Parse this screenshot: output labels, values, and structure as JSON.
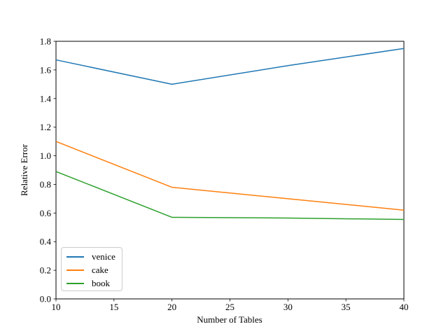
{
  "figure": {
    "background": "#ffffff",
    "spine_color": "#000000",
    "tick_color": "#000000",
    "legend_border_color": "#cccccc"
  },
  "chart_data": {
    "type": "line",
    "title": "",
    "xlabel": "Number of Tables",
    "ylabel": "Relative Error",
    "xlim": [
      10,
      40
    ],
    "ylim": [
      0.0,
      1.8
    ],
    "xticks": [
      "10",
      "15",
      "20",
      "25",
      "30",
      "35",
      "40"
    ],
    "yticks": [
      "0.0",
      "0.2",
      "0.4",
      "0.6",
      "0.8",
      "1.0",
      "1.2",
      "1.4",
      "1.6",
      "1.8"
    ],
    "grid": false,
    "legend_position": "lower-left",
    "x": [
      10,
      20,
      30,
      40
    ],
    "series": [
      {
        "name": "venice",
        "color": "#1f77b4",
        "values": [
          1.67,
          1.5,
          1.63,
          1.75
        ]
      },
      {
        "name": "cake",
        "color": "#ff7f0e",
        "values": [
          1.1,
          0.78,
          0.7,
          0.62
        ]
      },
      {
        "name": "book",
        "color": "#2ca02c",
        "values": [
          0.89,
          0.57,
          0.565,
          0.555
        ]
      }
    ]
  }
}
